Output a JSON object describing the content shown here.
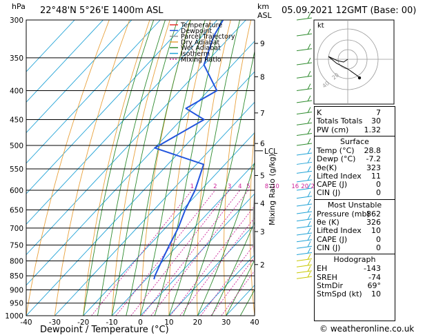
{
  "header": {
    "hpa_label": "hPa",
    "location": "22°48'N  5°26'E  1400m  ASL",
    "km_label": "km",
    "asl_label": "ASL",
    "datetime": "05.09.2021  12GMT  (Base: 00)",
    "credit": "© weatheronline.co.uk"
  },
  "chart_data": {
    "type": "line",
    "title": "",
    "xlabel": "Dewpoint / Temperature (°C)",
    "ylabel": "hPa",
    "right_axis_label": "Mixing Ratio (g/kg)",
    "xlim": [
      -40,
      40
    ],
    "ylim": [
      1000,
      300
    ],
    "x_ticks": [
      -40,
      -30,
      -20,
      -10,
      0,
      10,
      20,
      30,
      40
    ],
    "pressure_levels": [
      300,
      350,
      400,
      450,
      500,
      550,
      600,
      650,
      700,
      750,
      800,
      850,
      900,
      950,
      1000
    ],
    "height_km_ticks": [
      {
        "label": "9",
        "p": 330
      },
      {
        "label": "8",
        "p": 378
      },
      {
        "label": "7",
        "p": 438
      },
      {
        "label": "6",
        "p": 496
      },
      {
        "label": "5",
        "p": 565
      },
      {
        "label": "4",
        "p": 633
      },
      {
        "label": "3",
        "p": 710
      },
      {
        "label": "2",
        "p": 812
      }
    ],
    "lcl": {
      "label": "LCL",
      "p": 511
    },
    "mixing_ratio_labels": [
      "1",
      "2",
      "3",
      "4",
      "5",
      "8",
      "10",
      "16",
      "20",
      "25"
    ],
    "legend": [
      "Temperature",
      "Dewpoint",
      "Parcel Trajectory",
      "Dry Adiabat",
      "Wet Adiabat",
      "Isotherm",
      "Mixing Ratio"
    ],
    "legend_colors": [
      "#e8302a",
      "#2255dd",
      "#999999",
      "#e8a13c",
      "#2e8b2e",
      "#1fa2d6",
      "#cc2299"
    ],
    "series": [
      {
        "name": "Temperature",
        "color": "#e8302a",
        "points": [
          [
            862,
            28.8
          ],
          [
            850,
            28.0
          ],
          [
            800,
            23.0
          ],
          [
            750,
            18.2
          ],
          [
            700,
            13.5
          ],
          [
            650,
            9.0
          ],
          [
            600,
            4.5
          ],
          [
            550,
            -1.0
          ],
          [
            540,
            -2.0
          ],
          [
            525,
            0.0
          ],
          [
            500,
            -3.5
          ],
          [
            450,
            -9.0
          ],
          [
            420,
            -14.0
          ],
          [
            400,
            -17.5
          ],
          [
            380,
            -20.5
          ],
          [
            350,
            -25.0
          ],
          [
            330,
            -29.5
          ],
          [
            310,
            -33.5
          ],
          [
            300,
            -36.0
          ]
        ]
      },
      {
        "name": "Dewpoint",
        "color": "#2255dd",
        "points": [
          [
            862,
            -7.2
          ],
          [
            850,
            -8.0
          ],
          [
            800,
            -10.5
          ],
          [
            750,
            -13.0
          ],
          [
            700,
            -15.5
          ],
          [
            650,
            -19.0
          ],
          [
            600,
            -22.0
          ],
          [
            550,
            -26.5
          ],
          [
            540,
            -27.5
          ],
          [
            505,
            -50.0
          ],
          [
            450,
            -42.0
          ],
          [
            430,
            -52.0
          ],
          [
            400,
            -47.0
          ],
          [
            360,
            -60.0
          ],
          [
            320,
            -66.0
          ],
          [
            300,
            -68.0
          ]
        ]
      },
      {
        "name": "Parcel Trajectory",
        "color": "#999999",
        "points": [
          [
            862,
            28.8
          ],
          [
            800,
            22.0
          ],
          [
            750,
            16.5
          ],
          [
            700,
            10.8
          ],
          [
            650,
            5.0
          ],
          [
            600,
            -1.0
          ],
          [
            550,
            -8.0
          ],
          [
            511,
            -13.5
          ],
          [
            500,
            -14.5
          ],
          [
            450,
            -19.5
          ],
          [
            400,
            -25.5
          ],
          [
            350,
            -32.5
          ],
          [
            300,
            -40.5
          ]
        ]
      }
    ]
  },
  "hodograph": {
    "kt_label": "kt",
    "ring_labels": [
      "20",
      "40"
    ]
  },
  "indices": [
    {
      "label": "K",
      "value": "7"
    },
    {
      "label": "Totals Totals",
      "value": "30"
    },
    {
      "label": "PW (cm)",
      "value": "1.32"
    }
  ],
  "surface": {
    "title": "Surface",
    "rows": [
      {
        "label": "Temp (°C)",
        "value": "28.8"
      },
      {
        "label": "Dewp (°C)",
        "value": "-7.2"
      },
      {
        "label": "θe(K)",
        "value": "323"
      },
      {
        "label": "Lifted Index",
        "value": "11"
      },
      {
        "label": "CAPE (J)",
        "value": "0"
      },
      {
        "label": "CIN (J)",
        "value": "0"
      }
    ]
  },
  "most_unstable": {
    "title": "Most Unstable",
    "rows": [
      {
        "label": "Pressure (mb)",
        "value": "862"
      },
      {
        "label": "θe (K)",
        "value": "326"
      },
      {
        "label": "Lifted Index",
        "value": "10"
      },
      {
        "label": "CAPE (J)",
        "value": "0"
      },
      {
        "label": "CIN (J)",
        "value": "0"
      }
    ]
  },
  "hodograph_table": {
    "title": "Hodograph",
    "rows": [
      {
        "label": "EH",
        "value": "-143"
      },
      {
        "label": "SREH",
        "value": "-74"
      },
      {
        "label": "StmDir",
        "value": "69°"
      },
      {
        "label": "StmSpd (kt)",
        "value": "10"
      }
    ]
  }
}
